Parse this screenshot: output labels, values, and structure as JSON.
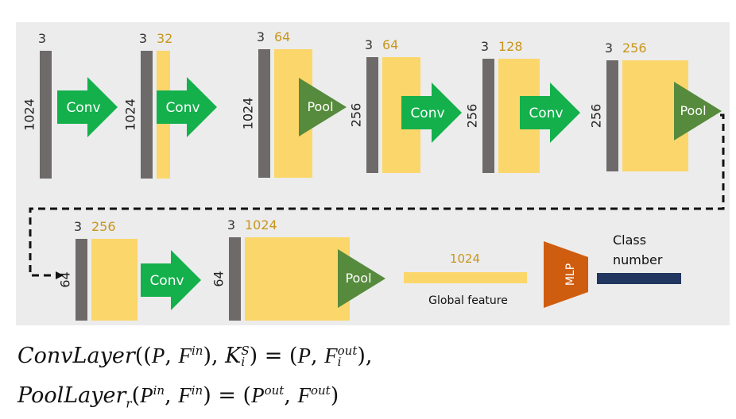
{
  "colors": {
    "panel": "#ececec",
    "gray_bar": "#6e6a6a",
    "yellow_bar": "#fbd66a",
    "dim_text": "#c8961c",
    "conv_arrow": "#14b04c",
    "pool_triangle": "#568a3c",
    "mlp": "#cf5d10",
    "class_bar": "#213760"
  },
  "stages": [
    {
      "points": "1024",
      "channels_in": "3",
      "channels_out": ""
    },
    {
      "points": "1024",
      "channels_in": "3",
      "channels_out": "32"
    },
    {
      "points": "1024",
      "channels_in": "3",
      "channels_out": "64"
    },
    {
      "points": "256",
      "channels_in": "3",
      "channels_out": "64"
    },
    {
      "points": "256",
      "channels_in": "3",
      "channels_out": "128"
    },
    {
      "points": "256",
      "channels_in": "3",
      "channels_out": "256"
    },
    {
      "points": "64",
      "channels_in": "3",
      "channels_out": "256"
    },
    {
      "points": "64",
      "channels_in": "3",
      "channels_out": "1024"
    }
  ],
  "ops": {
    "conv_label": "Conv",
    "pool_label": "Pool",
    "mlp_label": "MLP"
  },
  "global_feature": {
    "dim": "1024",
    "label": "Global feature"
  },
  "class_output": {
    "line1": "Class",
    "line2": "number"
  },
  "formulas": {
    "conv": {
      "name": "ConvLayer",
      "p": "P",
      "f": "F",
      "in_sup": "in",
      "k": "K",
      "k_sup": "S",
      "k_sub": "i",
      "out_sup": "out",
      "out_sub": "i"
    },
    "pool": {
      "name": "PoolLayer",
      "sub_r": "r",
      "p": "P",
      "f": "F",
      "in_sup": "in",
      "out_sup": "out"
    }
  }
}
